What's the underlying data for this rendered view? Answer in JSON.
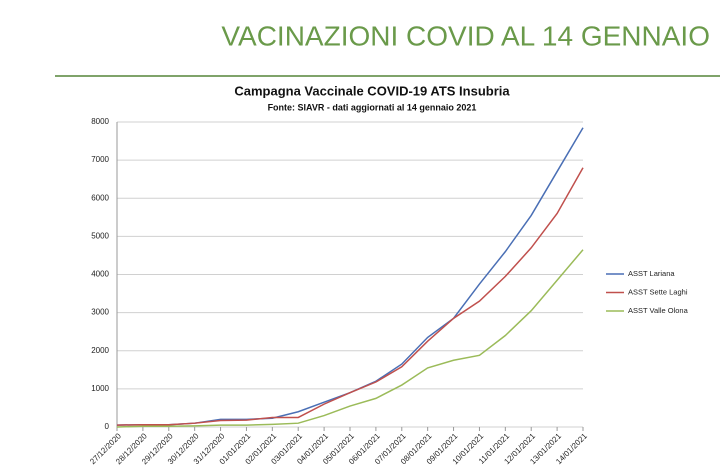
{
  "slide_title": "VACINAZIONI COVID AL 14 GENNAIO",
  "chart_data": {
    "type": "line",
    "title": "Campagna Vaccinale COVID-19 ATS Insubria",
    "subtitle": "Fonte: SIAVR - dati aggiornati al 14 gennaio 2021",
    "categories": [
      "27/12/2020",
      "28/12/2020",
      "29/12/2020",
      "30/12/2020",
      "31/12/2020",
      "01/01/2021",
      "02/01/2021",
      "03/01/2021",
      "04/01/2021",
      "05/01/2021",
      "06/01/2021",
      "07/01/2021",
      "08/01/2021",
      "09/01/2021",
      "10/01/2021",
      "11/01/2021",
      "12/01/2021",
      "13/01/2021",
      "14/01/2021"
    ],
    "series": [
      {
        "name": "ASST Lariana",
        "color": "#4a6fb5",
        "values": [
          50,
          60,
          60,
          100,
          200,
          200,
          230,
          400,
          650,
          900,
          1200,
          1650,
          2350,
          2850,
          3750,
          4600,
          5550,
          6700,
          7850
        ]
      },
      {
        "name": "ASST Sette Laghi",
        "color": "#c0504d",
        "values": [
          50,
          60,
          60,
          100,
          170,
          180,
          250,
          250,
          600,
          900,
          1180,
          1580,
          2250,
          2850,
          3300,
          3950,
          4700,
          5600,
          6800
        ]
      },
      {
        "name": "ASST Valle Olona",
        "color": "#9bbb59",
        "values": [
          0,
          20,
          20,
          30,
          50,
          50,
          70,
          100,
          300,
          550,
          750,
          1100,
          1550,
          1750,
          1880,
          2400,
          3050,
          3850,
          4650
        ]
      }
    ],
    "ylim": [
      0,
      8000
    ],
    "yticks": [
      0,
      1000,
      2000,
      3000,
      4000,
      5000,
      6000,
      7000,
      8000
    ],
    "grid": true,
    "legend": "right"
  }
}
